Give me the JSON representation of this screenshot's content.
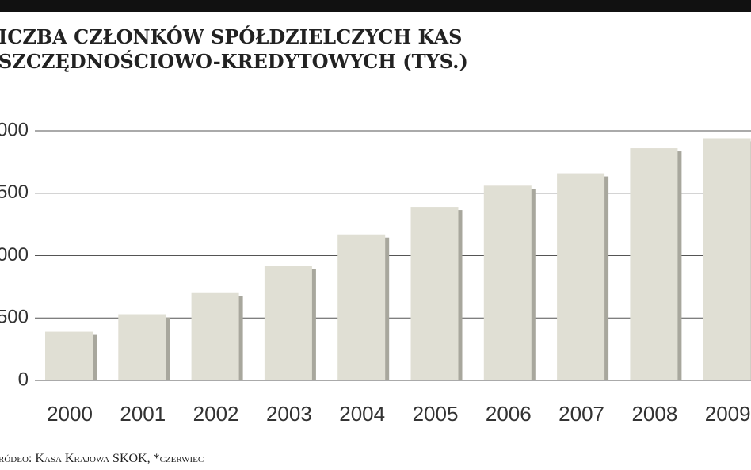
{
  "chart_data": {
    "type": "bar",
    "title": [
      "ICZBA CZŁONKÓW SPÓŁDZIELCZYCH KAS",
      "SZCZĘDNOŚCIOWO-KREDYTOWYCH (TYS.)"
    ],
    "source": "ródło: Kasa Krajowa SKOK, *czerwiec",
    "categories": [
      "2000",
      "2001",
      "2002",
      "2003",
      "2004",
      "2005",
      "2006",
      "2007",
      "2008",
      "2009"
    ],
    "values": [
      390,
      530,
      700,
      920,
      1170,
      1390,
      1560,
      1660,
      1860,
      1940
    ],
    "color": "#e0dfd4",
    "shadow_color": "#a8a79d",
    "ylim": [
      0,
      2000
    ],
    "yticks": [
      0,
      {
        "value": 500,
        "label": "500"
      },
      {
        "value": 1000,
        "label": "000"
      },
      {
        "value": 1500,
        "label": "500"
      },
      {
        "value": 2000,
        "label": "000"
      }
    ],
    "grid": true
  }
}
